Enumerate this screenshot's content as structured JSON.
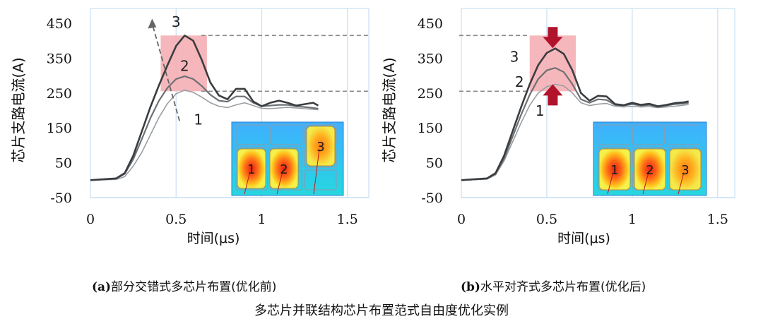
{
  "chart_data": [
    {
      "type": "line",
      "label": "(a)",
      "title": "部分交错式多芯片布置(优化前)",
      "xlabel": "时间(μs)",
      "ylabel": "芯片支路电流(A)",
      "xlim": [
        0,
        1.6
      ],
      "ylim": [
        -50,
        450
      ],
      "xticks": [
        "0",
        "0.5",
        "1",
        "1.5"
      ],
      "xtick_values": [
        0,
        0.5,
        1,
        1.5
      ],
      "yticks": [
        "-50",
        "50",
        "150",
        "250",
        "350",
        "450"
      ],
      "ytick_values": [
        -50,
        50,
        150,
        250,
        350,
        450
      ],
      "highlight_range": {
        "x": [
          0.41,
          0.68
        ],
        "y": [
          255,
          415
        ]
      },
      "reference_levels": [
        415,
        255
      ],
      "series": [
        {
          "name": "1",
          "x": [
            0,
            0.15,
            0.2,
            0.25,
            0.3,
            0.35,
            0.4,
            0.45,
            0.5,
            0.55,
            0.6,
            0.65,
            0.7,
            0.75,
            0.8,
            0.85,
            0.9,
            0.95,
            1.0,
            1.05,
            1.1,
            1.15,
            1.2,
            1.25,
            1.3,
            1.33
          ],
          "values": [
            0,
            2,
            10,
            40,
            80,
            130,
            180,
            220,
            248,
            258,
            252,
            238,
            222,
            212,
            208,
            216,
            222,
            214,
            206,
            205,
            207,
            209,
            207,
            205,
            203,
            202
          ]
        },
        {
          "name": "2",
          "x": [
            0,
            0.15,
            0.2,
            0.25,
            0.3,
            0.35,
            0.4,
            0.45,
            0.5,
            0.55,
            0.6,
            0.65,
            0.7,
            0.75,
            0.8,
            0.85,
            0.9,
            0.95,
            1.0,
            1.05,
            1.1,
            1.15,
            1.2,
            1.25,
            1.3,
            1.33
          ],
          "values": [
            0,
            4,
            18,
            60,
            118,
            178,
            228,
            265,
            290,
            298,
            290,
            270,
            245,
            228,
            225,
            240,
            240,
            222,
            212,
            214,
            216,
            216,
            212,
            210,
            207,
            205
          ]
        },
        {
          "name": "3",
          "x": [
            0,
            0.15,
            0.2,
            0.25,
            0.3,
            0.35,
            0.4,
            0.45,
            0.5,
            0.55,
            0.6,
            0.65,
            0.7,
            0.75,
            0.8,
            0.85,
            0.9,
            0.95,
            1.0,
            1.05,
            1.1,
            1.15,
            1.2,
            1.25,
            1.3,
            1.33
          ],
          "values": [
            0,
            5,
            20,
            70,
            140,
            210,
            272,
            330,
            385,
            415,
            400,
            345,
            280,
            243,
            232,
            262,
            262,
            226,
            212,
            222,
            228,
            222,
            214,
            218,
            222,
            214
          ]
        }
      ],
      "curve_labels": [
        "1",
        "2",
        "3"
      ],
      "inset_chip_labels": [
        "1",
        "2",
        "3"
      ]
    },
    {
      "type": "line",
      "label": "(b)",
      "title": "水平对齐式多芯片布置(优化后)",
      "xlabel": "时间(μs)",
      "ylabel": "芯片支路电流(A)",
      "xlim": [
        0,
        1.6
      ],
      "ylim": [
        -50,
        450
      ],
      "xticks": [
        "0",
        "0.5",
        "1",
        "1.5"
      ],
      "xtick_values": [
        0,
        0.5,
        1,
        1.5
      ],
      "yticks": [
        "-50",
        "50",
        "150",
        "250",
        "350",
        "450"
      ],
      "ytick_values": [
        -50,
        50,
        150,
        250,
        350,
        450
      ],
      "highlight_range": {
        "x": [
          0.4,
          0.67
        ],
        "y": [
          255,
          415
        ]
      },
      "reference_levels": [
        415,
        255
      ],
      "series": [
        {
          "name": "1",
          "x": [
            0,
            0.15,
            0.2,
            0.25,
            0.3,
            0.35,
            0.4,
            0.45,
            0.5,
            0.55,
            0.6,
            0.65,
            0.7,
            0.75,
            0.8,
            0.85,
            0.9,
            0.95,
            1.0,
            1.05,
            1.1,
            1.15,
            1.2,
            1.25,
            1.3,
            1.33
          ],
          "values": [
            0,
            3,
            15,
            55,
            110,
            165,
            215,
            250,
            268,
            275,
            270,
            250,
            222,
            214,
            218,
            220,
            212,
            210,
            212,
            210,
            211,
            208,
            210,
            212,
            215,
            217
          ]
        },
        {
          "name": "2",
          "x": [
            0,
            0.15,
            0.2,
            0.25,
            0.3,
            0.35,
            0.4,
            0.45,
            0.5,
            0.55,
            0.6,
            0.65,
            0.7,
            0.75,
            0.8,
            0.85,
            0.9,
            0.95,
            1.0,
            1.05,
            1.1,
            1.15,
            1.2,
            1.25,
            1.3,
            1.33
          ],
          "values": [
            0,
            4,
            18,
            62,
            125,
            188,
            245,
            290,
            315,
            322,
            310,
            275,
            232,
            222,
            232,
            230,
            216,
            214,
            218,
            214,
            216,
            210,
            214,
            218,
            220,
            222
          ]
        },
        {
          "name": "3",
          "x": [
            0,
            0.15,
            0.2,
            0.25,
            0.3,
            0.35,
            0.4,
            0.45,
            0.5,
            0.55,
            0.6,
            0.65,
            0.7,
            0.75,
            0.8,
            0.85,
            0.9,
            0.95,
            1.0,
            1.05,
            1.1,
            1.15,
            1.2,
            1.25,
            1.3,
            1.33
          ],
          "values": [
            0,
            5,
            20,
            70,
            140,
            210,
            275,
            330,
            365,
            378,
            362,
            315,
            250,
            228,
            242,
            240,
            218,
            215,
            222,
            216,
            219,
            212,
            216,
            221,
            223,
            226
          ]
        }
      ],
      "curve_labels": [
        "1",
        "2",
        "3"
      ],
      "inset_chip_labels": [
        "1",
        "2",
        "3"
      ]
    }
  ],
  "captions": {
    "a_prefix": "(a)",
    "a_text": "部分交错式多芯片布置(优化前)",
    "b_prefix": "(b)",
    "b_text": "水平对齐式多芯片布置(优化后)",
    "figure": "多芯片并联结构芯片布置范式自由度优化实例"
  },
  "colors": {
    "line": "#3a3d40",
    "highlight": "#f4aab0",
    "grid": "#c9e0f2",
    "arrow_red": "#b0132b",
    "dash": "#888888"
  }
}
